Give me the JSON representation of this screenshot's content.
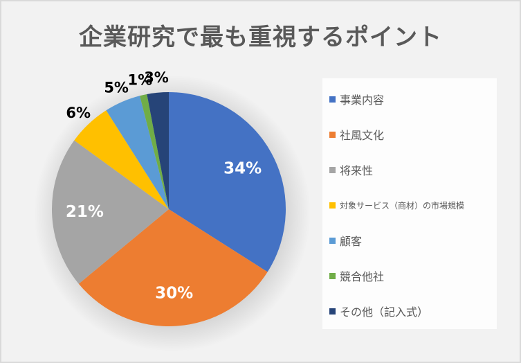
{
  "chart_data": {
    "type": "pie",
    "title": "企業研究で最も重視するポイント",
    "start_angle_deg": 0,
    "direction": "clockwise",
    "categories": [
      "事業内容",
      "社風文化",
      "将来性",
      "対象サービス（商材）の市場規模",
      "顧客",
      "競合他社",
      "その他（記入式）"
    ],
    "values": [
      34,
      30,
      21,
      6,
      5,
      1,
      3
    ],
    "value_labels": [
      "34%",
      "30%",
      "21%",
      "6%",
      "5%",
      "1%",
      "3%"
    ],
    "colors": [
      "#4472c4",
      "#ed7d31",
      "#a5a5a5",
      "#ffc000",
      "#5b9bd5",
      "#70ad47",
      "#264478"
    ],
    "label_positions": [
      "inside",
      "inside",
      "inside",
      "outside",
      "outside",
      "outside",
      "outside"
    ],
    "legend_position": "right"
  },
  "legend": {
    "items": [
      {
        "label": "事業内容",
        "color": "#4472c4"
      },
      {
        "label": "社風文化",
        "color": "#ed7d31"
      },
      {
        "label": "将来性",
        "color": "#a5a5a5"
      },
      {
        "label": "対象サービス（商材）の市場規模",
        "color": "#ffc000"
      },
      {
        "label": "顧客",
        "color": "#5b9bd5"
      },
      {
        "label": "競合他社",
        "color": "#70ad47"
      },
      {
        "label": "その他（記入式）",
        "color": "#264478"
      }
    ]
  }
}
